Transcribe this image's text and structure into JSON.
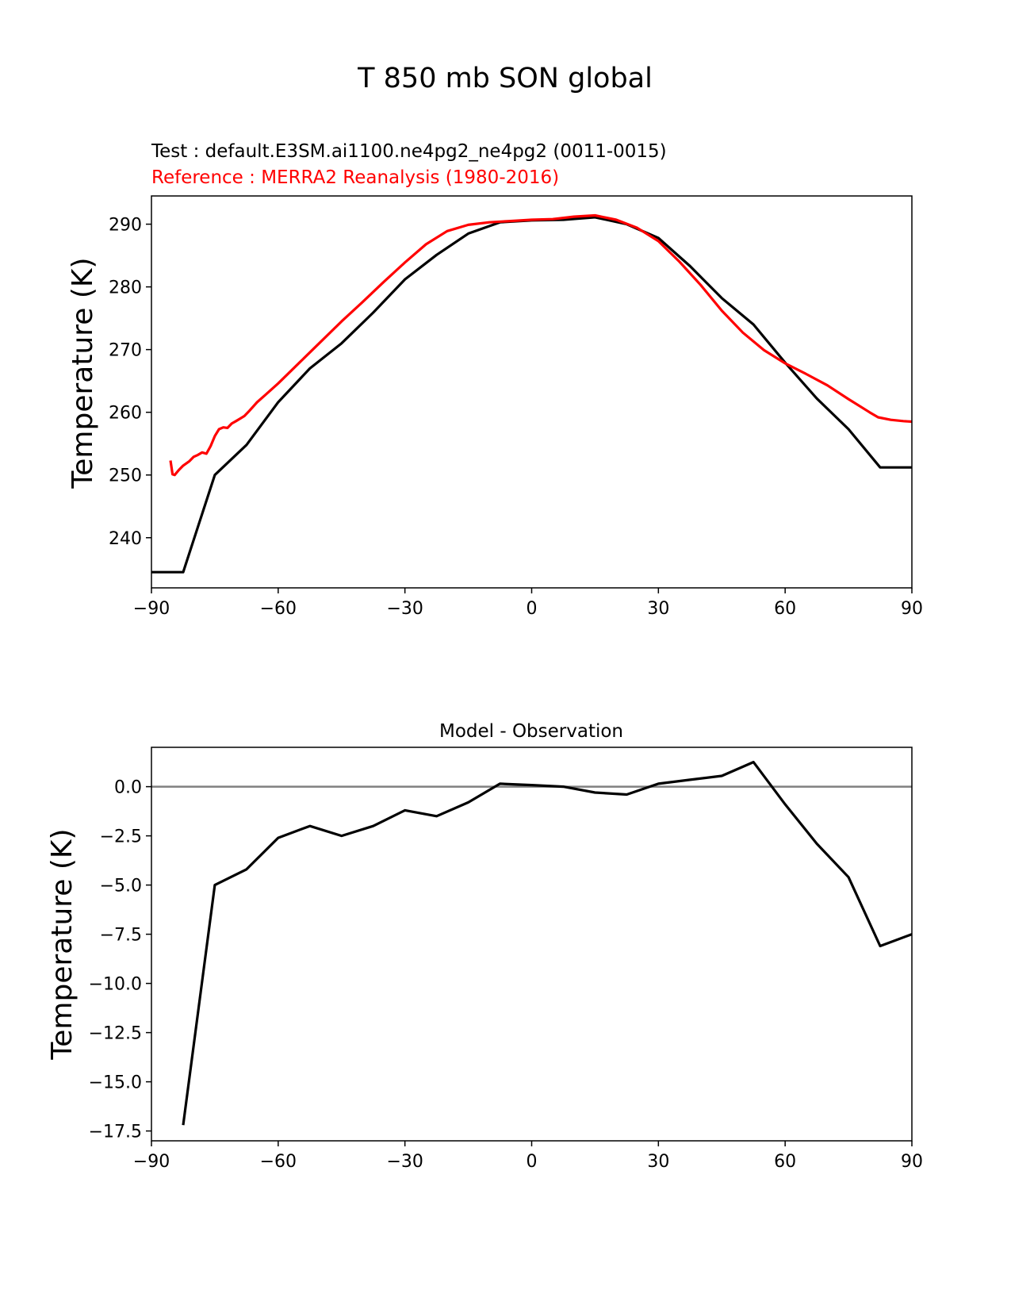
{
  "figure": {
    "suptitle": "T 850 mb SON global"
  },
  "chart_data": [
    {
      "type": "line",
      "test_label": "Test : default.E3SM.ai1100.ne4pg2_ne4pg2 (0011-0015)",
      "reference_label": "Reference : MERRA2 Reanalysis (1980-2016)",
      "xlabel": "",
      "ylabel": "Temperature (K)",
      "xlim": [
        -90,
        90
      ],
      "ylim": [
        232,
        294.5
      ],
      "xticks": [
        -90,
        -60,
        -30,
        0,
        30,
        60,
        90
      ],
      "xtick_labels": [
        "−90",
        "−60",
        "−30",
        "0",
        "30",
        "60",
        "90"
      ],
      "yticks": [
        240,
        250,
        260,
        270,
        280,
        290
      ],
      "ytick_labels": [
        "240",
        "250",
        "260",
        "270",
        "280",
        "290"
      ],
      "series": [
        {
          "name": "Test",
          "color": "#000000",
          "x": [
            -90,
            -82.5,
            -75,
            -67.5,
            -60,
            -52.5,
            -45,
            -37.5,
            -30,
            -22.5,
            -15,
            -7.5,
            0,
            7.5,
            15,
            22.5,
            30,
            37.5,
            45,
            52.5,
            60,
            67.5,
            75,
            82.5,
            90
          ],
          "y": [
            234.5,
            234.5,
            250,
            254.8,
            261.6,
            267,
            271,
            275.9,
            281.2,
            285.1,
            288.5,
            290.3,
            290.6,
            290.7,
            291.1,
            290,
            287.8,
            283.3,
            278.2,
            274,
            267.9,
            262.2,
            257.3,
            251.2,
            251.2
          ]
        },
        {
          "name": "Reference",
          "color": "#ff0000",
          "x": [
            -85.5,
            -85,
            -84.5,
            -83.5,
            -82.5,
            -81,
            -80,
            -79,
            -78,
            -77,
            -76,
            -75,
            -74,
            -73,
            -72,
            -71,
            -70,
            -69,
            -68,
            -67,
            -65,
            -63,
            -60,
            -55,
            -50,
            -45,
            -40,
            -35,
            -30,
            -25,
            -20,
            -15,
            -10,
            -5,
            0,
            5,
            10,
            15,
            20,
            25,
            30,
            35,
            40,
            45,
            50,
            55,
            60,
            65,
            70,
            75,
            80,
            82,
            85,
            88,
            90
          ],
          "y": [
            252.3,
            250.1,
            250.0,
            250.8,
            251.5,
            252.2,
            252.9,
            253.2,
            253.6,
            253.4,
            254.6,
            256.2,
            257.3,
            257.6,
            257.5,
            258.2,
            258.6,
            259.0,
            259.4,
            260.1,
            261.6,
            262.8,
            264.6,
            267.9,
            271.2,
            274.5,
            277.6,
            280.8,
            283.9,
            286.8,
            288.9,
            289.9,
            290.3,
            290.5,
            290.7,
            290.8,
            291.2,
            291.4,
            290.7,
            289.4,
            287.3,
            284.0,
            280.3,
            276.2,
            272.7,
            269.9,
            267.8,
            266.1,
            264.3,
            262.1,
            260.0,
            259.2,
            258.8,
            258.6,
            258.5
          ]
        }
      ]
    },
    {
      "type": "line",
      "title": "Model - Observation",
      "xlabel": "",
      "ylabel": "Temperature (K)",
      "xlim": [
        -90,
        90
      ],
      "ylim": [
        -18,
        2
      ],
      "xticks": [
        -90,
        -60,
        -30,
        0,
        30,
        60,
        90
      ],
      "xtick_labels": [
        "−90",
        "−60",
        "−30",
        "0",
        "30",
        "60",
        "90"
      ],
      "yticks": [
        0,
        -2.5,
        -5,
        -7.5,
        -10,
        -12.5,
        -15,
        -17.5
      ],
      "ytick_labels": [
        "0.0",
        "−2.5",
        "−5.0",
        "−7.5",
        "−10.0",
        "−12.5",
        "−15.0",
        "−17.5"
      ],
      "zero_line_color": "#808080",
      "series": [
        {
          "name": "Model - Observation",
          "color": "#000000",
          "x": [
            -82.5,
            -75,
            -67.5,
            -60,
            -52.5,
            -45,
            -37.5,
            -30,
            -22.5,
            -15,
            -7.5,
            0,
            7.5,
            15,
            22.5,
            30,
            37.5,
            45,
            52.5,
            60,
            67.5,
            75,
            82.5,
            90
          ],
          "y": [
            -17.2,
            -5.0,
            -4.2,
            -2.6,
            -2.0,
            -2.5,
            -2.0,
            -1.2,
            -1.5,
            -0.8,
            0.15,
            0.08,
            0.0,
            -0.3,
            -0.4,
            0.15,
            0.35,
            0.55,
            1.25,
            -0.9,
            -2.9,
            -4.6,
            -8.1,
            -7.5
          ]
        }
      ]
    }
  ]
}
